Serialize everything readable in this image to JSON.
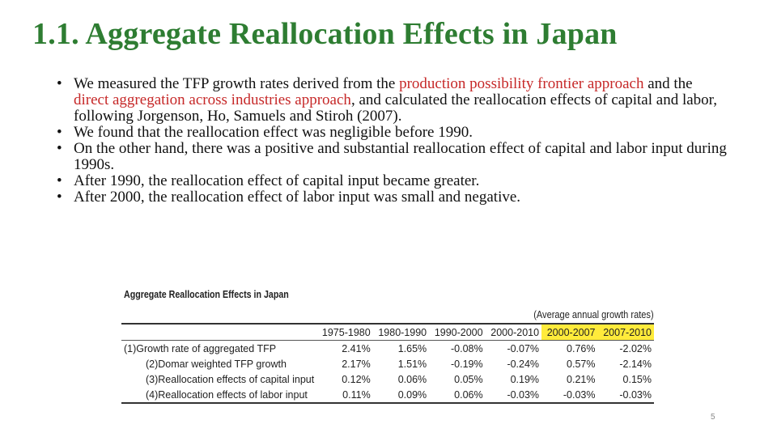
{
  "slide": {
    "title": "1.1. Aggregate Reallocation Effects in Japan",
    "page_number": "5",
    "bullets": [
      {
        "segments": [
          {
            "text": "We measured the TFP growth rates derived from the ",
            "highlight": false
          },
          {
            "text": "production possibility frontier approach",
            "highlight": true
          },
          {
            "text": " and the ",
            "highlight": false
          },
          {
            "text": "direct aggregation across industries approach",
            "highlight": true
          },
          {
            "text": ", and calculated the reallocation effects of capital and labor, following Jorgenson, Ho, Samuels and Stiroh (2007).",
            "highlight": false
          }
        ]
      },
      {
        "segments": [
          {
            "text": "We found that the reallocation effect was negligible before 1990.",
            "highlight": false
          }
        ]
      },
      {
        "segments": [
          {
            "text": "On the other hand, there was a positive and substantial reallocation effect of capital and labor input during 1990s.",
            "highlight": false
          }
        ]
      },
      {
        "segments": [
          {
            "text": "After 1990, the reallocation effect of capital input became greater.",
            "highlight": false
          }
        ]
      },
      {
        "segments": [
          {
            "text": "After 2000, the reallocation effect of labor input was small and negative.",
            "highlight": false
          }
        ]
      }
    ],
    "bullet_symbol": "•",
    "colors": {
      "title": "#2e7d32",
      "highlight_text": "#c62828",
      "header_highlight": "#ffeb3b"
    }
  },
  "table": {
    "title": "Aggregate Reallocation Effects in Japan",
    "note": "(Average annual growth rates)",
    "columns": [
      "1975-1980",
      "1980-1990",
      "1990-2000",
      "2000-2010",
      "2000-2007",
      "2007-2010"
    ],
    "highlighted_columns": [
      "2000-2007",
      "2007-2010"
    ],
    "rows": [
      {
        "label": "(1)Growth rate of aggregated TFP",
        "indent": false,
        "values": [
          "2.41%",
          "1.65%",
          "-0.08%",
          "-0.07%",
          "0.76%",
          "-2.02%"
        ]
      },
      {
        "label": "(2)Domar weighted TFP growth",
        "indent": true,
        "values": [
          "2.17%",
          "1.51%",
          "-0.19%",
          "-0.24%",
          "0.57%",
          "-2.14%"
        ]
      },
      {
        "label": "(3)Reallocation effects of capital input",
        "indent": true,
        "values": [
          "0.12%",
          "0.06%",
          "0.05%",
          "0.19%",
          "0.21%",
          "0.15%"
        ]
      },
      {
        "label": "(4)Reallocation effects of labor input",
        "indent": true,
        "values": [
          "0.11%",
          "0.09%",
          "0.06%",
          "-0.03%",
          "-0.03%",
          "-0.03%"
        ]
      }
    ]
  }
}
